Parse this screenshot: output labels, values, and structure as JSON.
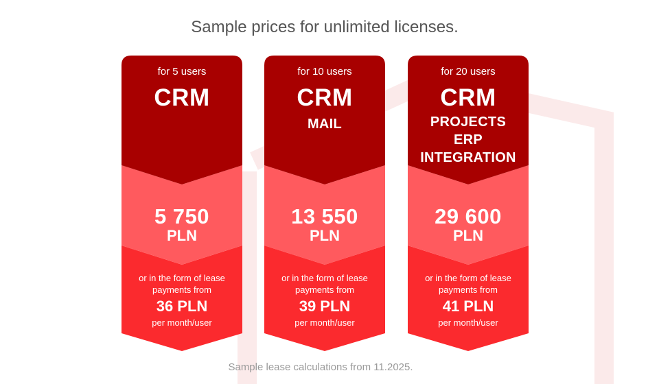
{
  "title": "Sample prices for unlimited licenses.",
  "footnote": "Sample lease calculations from 11.2025.",
  "colors": {
    "top": "#a80000",
    "middle": "#ff5a5e",
    "bottom": "#fb2a2e",
    "watermark": "#fbeaea"
  },
  "cards": [
    {
      "users": "for 5 users",
      "product": "CRM",
      "modules": [],
      "price": "5 750",
      "currency": "PLN",
      "lease_line1": "or in the form of lease",
      "lease_line2": "payments from",
      "monthly": "36 PLN",
      "per": "per month/user"
    },
    {
      "users": "for 10 users",
      "product": "CRM",
      "modules": [
        "MAIL"
      ],
      "price": "13 550",
      "currency": "PLN",
      "lease_line1": "or in the form of lease",
      "lease_line2": "payments from",
      "monthly": "39 PLN",
      "per": "per month/user"
    },
    {
      "users": "for 20 users",
      "product": "CRM",
      "modules": [
        "PROJECTS",
        "ERP",
        "INTEGRATION"
      ],
      "price": "29 600",
      "currency": "PLN",
      "lease_line1": "or in the form of lease",
      "lease_line2": "payments from",
      "monthly": "41 PLN",
      "per": "per month/user"
    }
  ]
}
